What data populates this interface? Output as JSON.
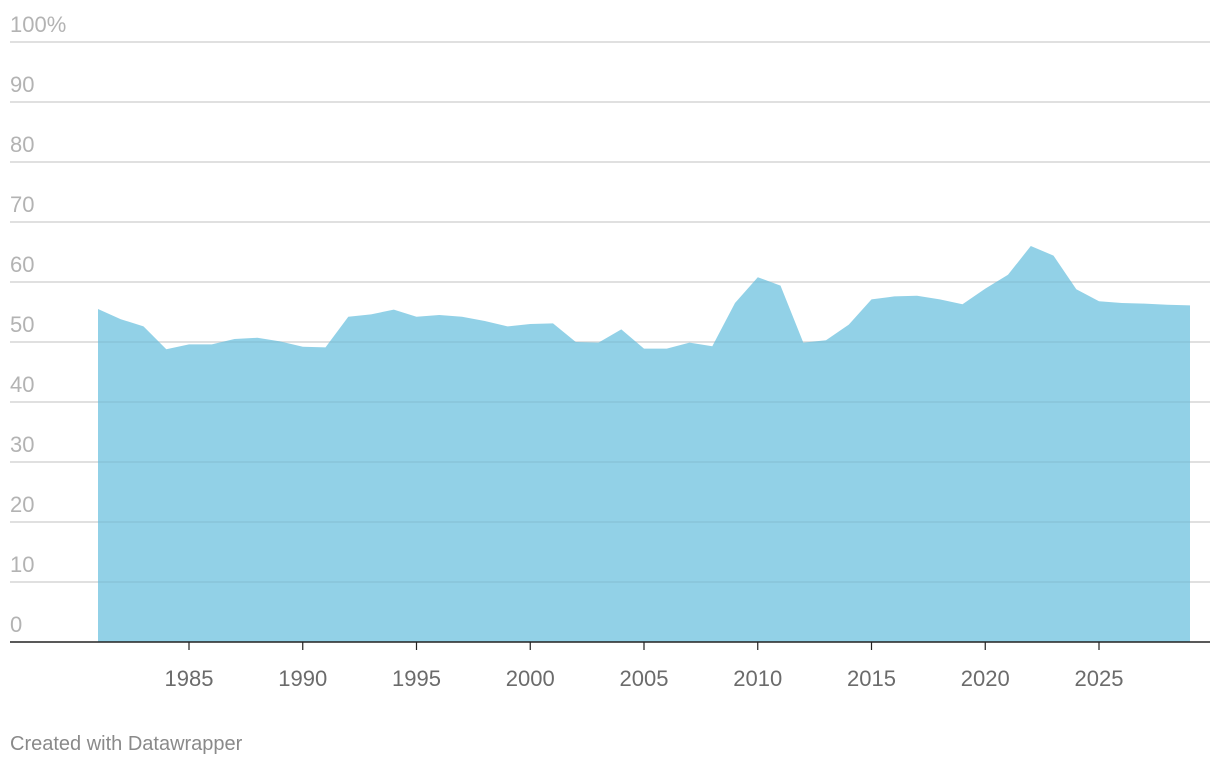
{
  "chart_data": {
    "type": "area",
    "title": "",
    "xlabel": "",
    "ylabel": "",
    "ylim": [
      0,
      100
    ],
    "y_unit_suffix": "%",
    "y_ticks": [
      0,
      10,
      20,
      30,
      40,
      50,
      60,
      70,
      80,
      90,
      100
    ],
    "x_ticks": [
      1985,
      1990,
      1995,
      2000,
      2005,
      2010,
      2015,
      2020,
      2025
    ],
    "grid": true,
    "legend": "none",
    "color": "#8ccfe6",
    "series": [
      {
        "x": [
          1981,
          1982,
          1983,
          1984,
          1985,
          1986,
          1987,
          1988,
          1989,
          1990,
          1991,
          1992,
          1993,
          1994,
          1995,
          1996,
          1997,
          1998,
          1999,
          2000,
          2001,
          2002,
          2003,
          2004,
          2005,
          2006,
          2007,
          2008,
          2009,
          2010,
          2011,
          2012,
          2013,
          2014,
          2015,
          2016,
          2017,
          2018,
          2019,
          2020,
          2021,
          2022,
          2023,
          2024,
          2025,
          2026,
          2027,
          2028,
          2029
        ],
        "values": [
          55.5,
          53.8,
          52.6,
          48.8,
          49.6,
          49.6,
          50.5,
          50.7,
          50.1,
          49.2,
          49.1,
          54.2,
          54.6,
          55.4,
          54.2,
          54.5,
          54.2,
          53.5,
          52.6,
          53.0,
          53.1,
          50.0,
          49.9,
          52.1,
          48.9,
          48.9,
          49.9,
          49.3,
          56.5,
          60.8,
          59.4,
          49.9,
          50.3,
          52.9,
          57.1,
          57.6,
          57.7,
          57.1,
          56.3,
          58.9,
          61.2,
          66.0,
          64.4,
          58.8,
          56.8,
          56.5,
          56.4,
          56.2,
          56.1
        ]
      }
    ]
  },
  "footer": {
    "credit": "Created with Datawrapper"
  }
}
